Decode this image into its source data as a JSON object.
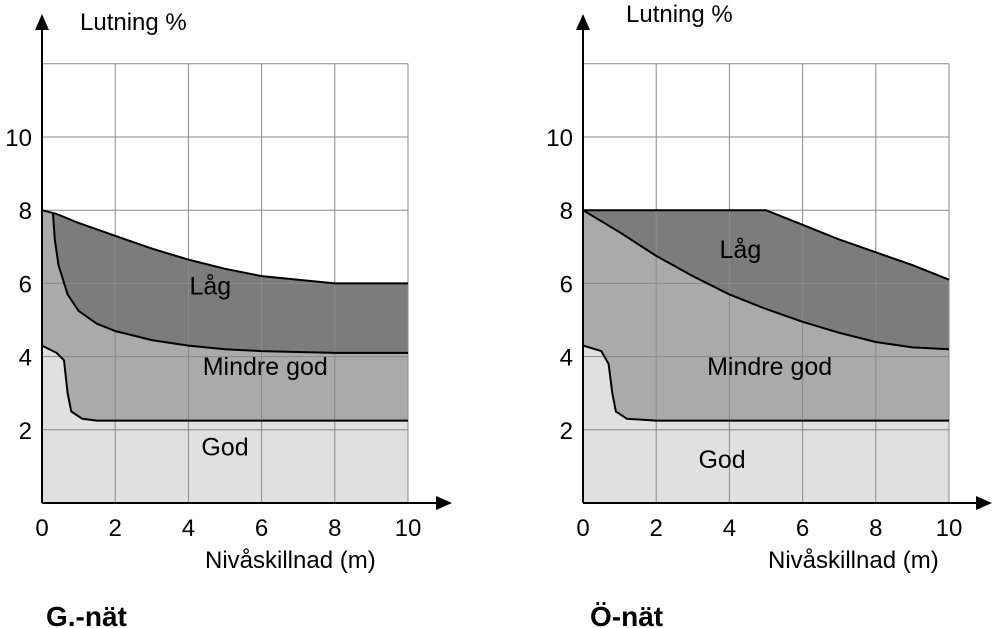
{
  "colors": {
    "god": "#e0e0e0",
    "mindre_god": "#aaaaaa",
    "lag": "#7c7c7c",
    "grid": "#8a8a8a",
    "boundary": "#000000"
  },
  "chart_data": [
    {
      "type": "area",
      "title": "G.-nät",
      "xlabel": "Nivåskillnad (m)",
      "ylabel": "Lutning %",
      "xlim": [
        0,
        10
      ],
      "ylim": [
        0,
        12
      ],
      "x_ticks": [
        0,
        2,
        4,
        6,
        8,
        10
      ],
      "y_ticks": [
        2,
        4,
        6,
        8,
        10
      ],
      "grid": true,
      "regions": [
        {
          "label": "God",
          "label_at": [
            5,
            1.3
          ]
        },
        {
          "label": "Mindre god",
          "label_at": [
            6.1,
            3.5
          ]
        },
        {
          "label": "Låg",
          "label_at": [
            4.6,
            5.7
          ]
        }
      ],
      "curves": {
        "top": [
          [
            0,
            8
          ],
          [
            0.4,
            7.9
          ],
          [
            1,
            7.65
          ],
          [
            2,
            7.3
          ],
          [
            3,
            6.95
          ],
          [
            4,
            6.65
          ],
          [
            5,
            6.4
          ],
          [
            6,
            6.2
          ],
          [
            7,
            6.1
          ],
          [
            8,
            6.0
          ],
          [
            9,
            6.0
          ],
          [
            10,
            6.0
          ]
        ],
        "mid": [
          [
            0.3,
            7.9
          ],
          [
            0.35,
            7.2
          ],
          [
            0.45,
            6.5
          ],
          [
            0.7,
            5.7
          ],
          [
            1,
            5.25
          ],
          [
            1.5,
            4.9
          ],
          [
            2,
            4.7
          ],
          [
            3,
            4.45
          ],
          [
            4,
            4.3
          ],
          [
            5,
            4.2
          ],
          [
            6,
            4.15
          ],
          [
            8,
            4.1
          ],
          [
            10,
            4.1
          ]
        ],
        "low": [
          [
            0,
            4.3
          ],
          [
            0.4,
            4.1
          ],
          [
            0.6,
            3.9
          ],
          [
            0.7,
            3.0
          ],
          [
            0.8,
            2.5
          ],
          [
            1.1,
            2.3
          ],
          [
            1.5,
            2.25
          ],
          [
            2,
            2.25
          ],
          [
            4,
            2.25
          ],
          [
            6,
            2.25
          ],
          [
            8,
            2.25
          ],
          [
            10,
            2.25
          ]
        ]
      }
    },
    {
      "type": "area",
      "title": "Ö-nät",
      "xlabel": "Nivåskillnad (m)",
      "ylabel": "Lutning %",
      "xlim": [
        0,
        10
      ],
      "ylim": [
        0,
        12
      ],
      "x_ticks": [
        0,
        2,
        4,
        6,
        8,
        10
      ],
      "y_ticks": [
        2,
        4,
        6,
        8,
        10
      ],
      "grid": true,
      "regions": [
        {
          "label": "God",
          "label_at": [
            3.8,
            0.95
          ]
        },
        {
          "label": "Mindre god",
          "label_at": [
            5.1,
            3.5
          ]
        },
        {
          "label": "Låg",
          "label_at": [
            4.3,
            6.7
          ]
        }
      ],
      "curves": {
        "top": [
          [
            0,
            8
          ],
          [
            4.7,
            8
          ],
          [
            5,
            8
          ],
          [
            6,
            7.6
          ],
          [
            7,
            7.2
          ],
          [
            8,
            6.85
          ],
          [
            9,
            6.5
          ],
          [
            10,
            6.1
          ]
        ],
        "mid": [
          [
            0,
            8
          ],
          [
            0.5,
            7.7
          ],
          [
            1,
            7.4
          ],
          [
            2,
            6.75
          ],
          [
            3,
            6.2
          ],
          [
            4,
            5.7
          ],
          [
            5,
            5.3
          ],
          [
            6,
            4.95
          ],
          [
            7,
            4.65
          ],
          [
            8,
            4.4
          ],
          [
            9,
            4.25
          ],
          [
            10,
            4.2
          ]
        ],
        "low": [
          [
            0,
            4.3
          ],
          [
            0.5,
            4.15
          ],
          [
            0.7,
            3.8
          ],
          [
            0.8,
            3.0
          ],
          [
            0.9,
            2.5
          ],
          [
            1.2,
            2.3
          ],
          [
            2,
            2.25
          ],
          [
            4,
            2.25
          ],
          [
            6,
            2.25
          ],
          [
            8,
            2.25
          ],
          [
            10,
            2.25
          ]
        ]
      }
    }
  ]
}
